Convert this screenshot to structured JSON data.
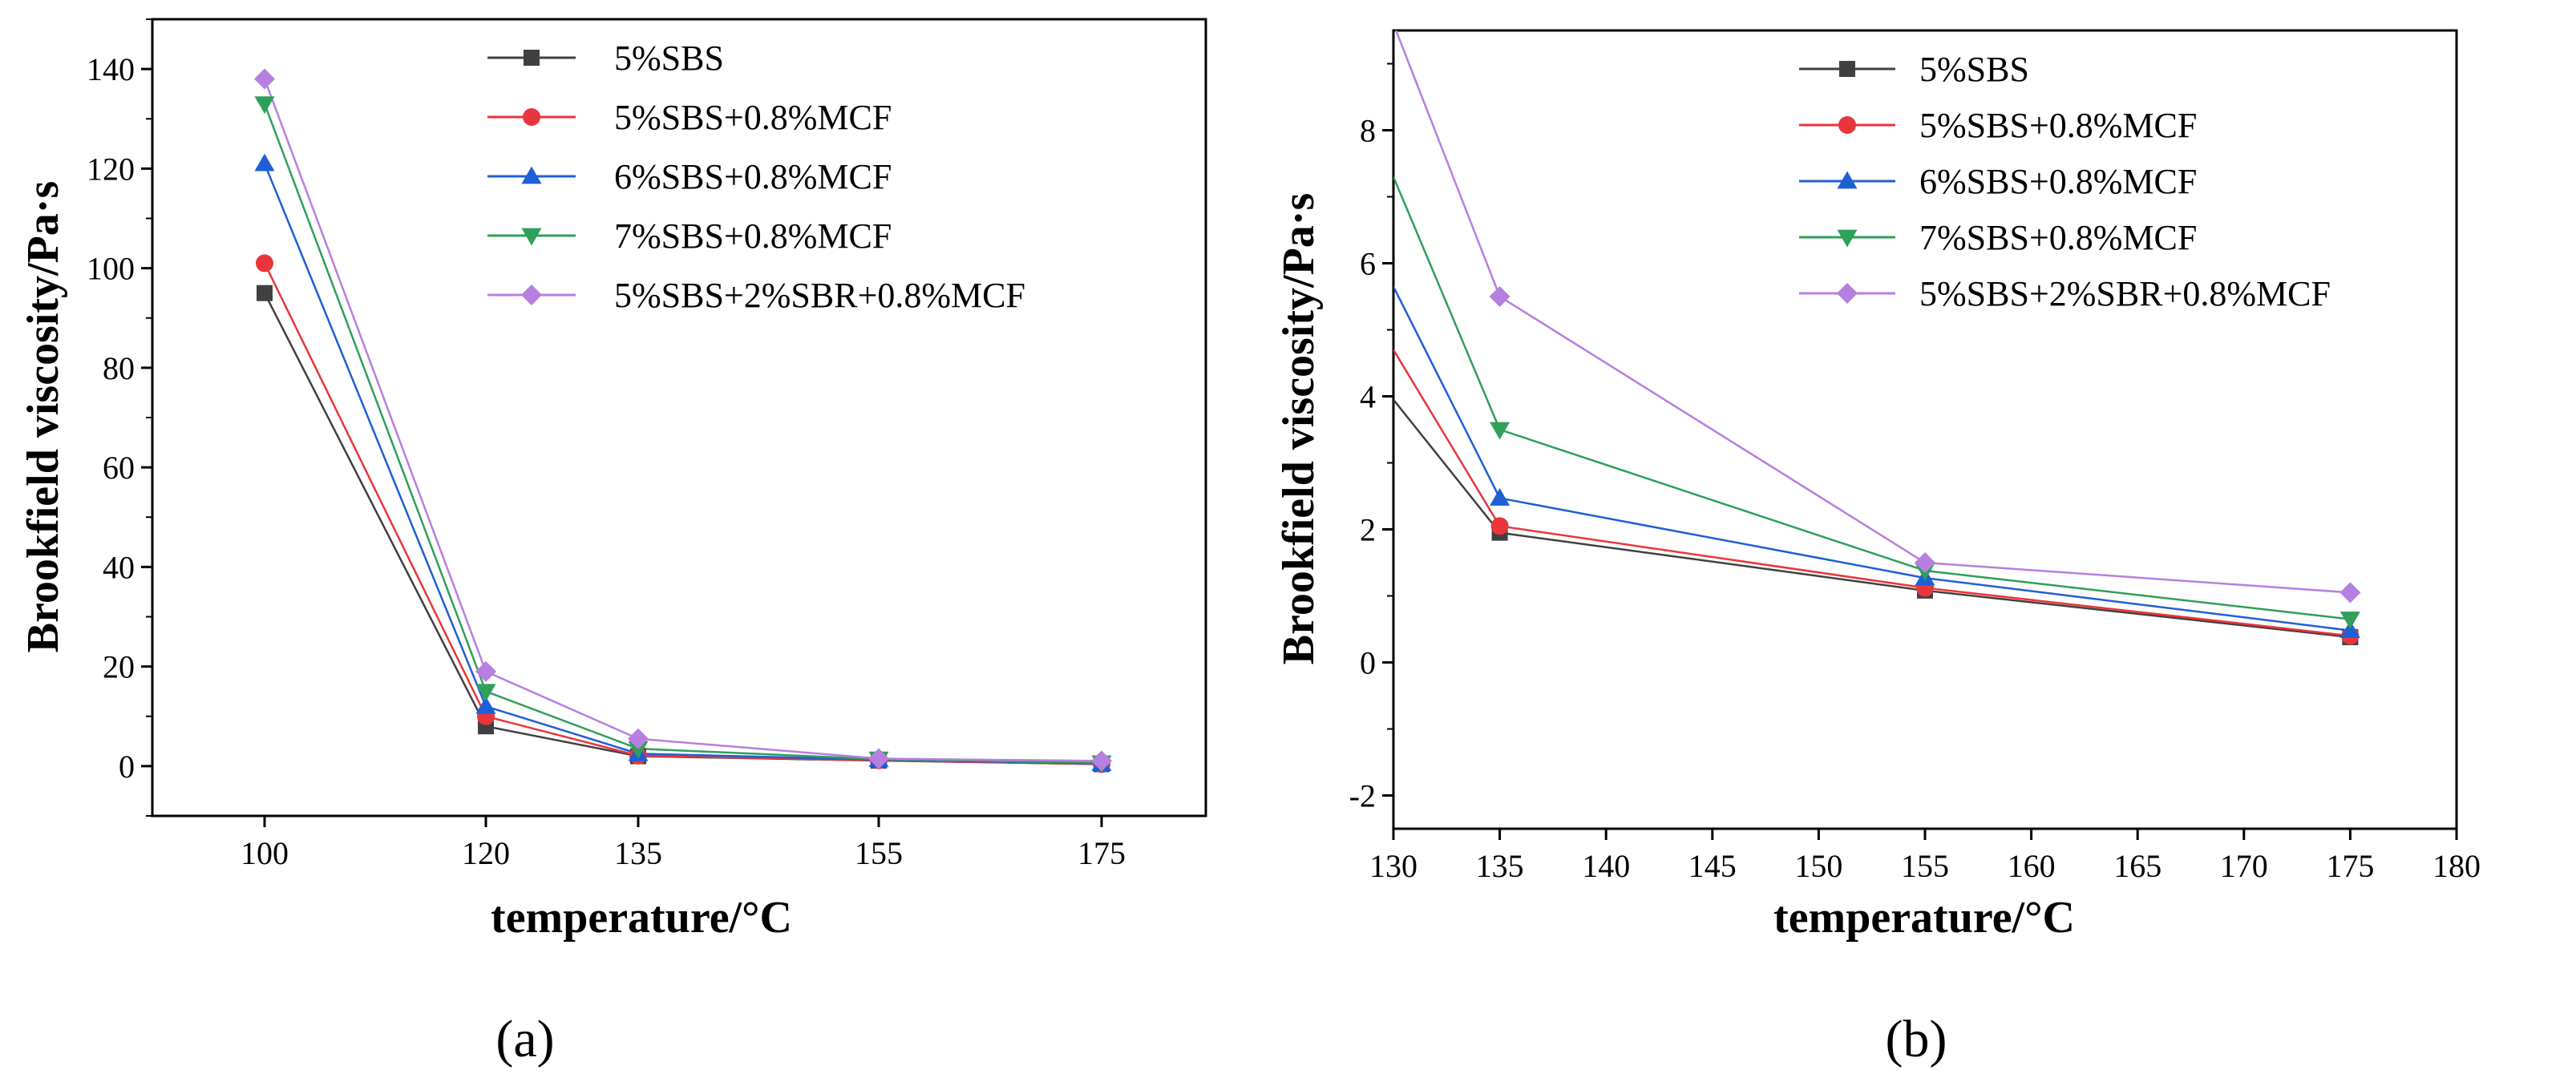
{
  "chart_data": [
    {
      "type": "line",
      "panel_label": "(a)",
      "xlabel": "temperature/°C",
      "ylabel": "Brookfield viscosity/Pa·s",
      "x_categories": [
        "100",
        "120",
        "135",
        "155",
        "175"
      ],
      "ylim": [
        -10,
        150
      ],
      "yticks": [
        "0",
        "20",
        "40",
        "60",
        "80",
        "100",
        "120",
        "140"
      ],
      "legend_position": "top-right",
      "series": [
        {
          "name": "5%SBS",
          "color": "#404040",
          "marker": "square",
          "values": [
            95,
            8,
            2,
            1.1,
            0.4
          ]
        },
        {
          "name": "5%SBS+0.8%MCF",
          "color": "#e8363c",
          "marker": "circle",
          "values": [
            101,
            10,
            2.1,
            1.15,
            0.4
          ]
        },
        {
          "name": "6%SBS+0.8%MCF",
          "color": "#1f5fd6",
          "marker": "triangle-up",
          "values": [
            121,
            12,
            2.5,
            1.3,
            0.5
          ]
        },
        {
          "name": "7%SBS+0.8%MCF",
          "color": "#2f9f5a",
          "marker": "triangle-down",
          "values": [
            133,
            15,
            3.5,
            1.4,
            0.65
          ]
        },
        {
          "name": "5%SBS+2%SBR+0.8%MCF",
          "color": "#b77fe0",
          "marker": "diamond",
          "values": [
            138,
            19,
            5.5,
            1.5,
            1.05
          ]
        }
      ]
    },
    {
      "type": "line",
      "panel_label": "(b)",
      "xlabel": "temperature/°C",
      "ylabel": "Brookfield viscosity/Pa·s",
      "xlim": [
        130,
        180
      ],
      "xticks": [
        "130",
        "135",
        "140",
        "145",
        "150",
        "155",
        "160",
        "165",
        "170",
        "175",
        "180"
      ],
      "ylim": [
        -2.5,
        9.5
      ],
      "yticks": [
        "-2",
        "0",
        "2",
        "4",
        "6",
        "8"
      ],
      "legend_position": "top-right",
      "series": [
        {
          "name": "5%SBS",
          "color": "#404040",
          "marker": "square",
          "x": [
            130,
            135,
            155,
            175
          ],
          "values": [
            3.95,
            1.95,
            1.08,
            0.38
          ],
          "marker_from": 1
        },
        {
          "name": "5%SBS+0.8%MCF",
          "color": "#e8363c",
          "marker": "circle",
          "x": [
            130,
            135,
            155,
            175
          ],
          "values": [
            4.7,
            2.05,
            1.12,
            0.4
          ],
          "marker_from": 1
        },
        {
          "name": "6%SBS+0.8%MCF",
          "color": "#1f5fd6",
          "marker": "triangle-up",
          "x": [
            130,
            135,
            155,
            175
          ],
          "values": [
            5.65,
            2.47,
            1.27,
            0.48
          ],
          "marker_from": 1
        },
        {
          "name": "7%SBS+0.8%MCF",
          "color": "#2f9f5a",
          "marker": "triangle-down",
          "x": [
            130,
            135,
            155,
            175
          ],
          "values": [
            7.3,
            3.5,
            1.38,
            0.65
          ],
          "marker_from": 1
        },
        {
          "name": "5%SBS+2%SBR+0.8%MCF",
          "color": "#b77fe0",
          "marker": "diamond",
          "x": [
            130,
            135,
            155,
            175
          ],
          "values": [
            9.6,
            5.5,
            1.5,
            1.05
          ],
          "marker_from": 1
        }
      ]
    }
  ]
}
